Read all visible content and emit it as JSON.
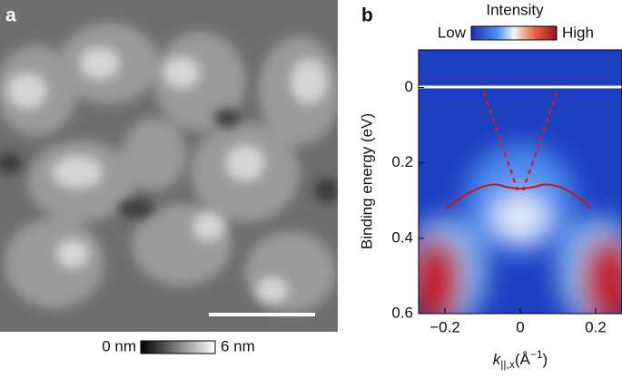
{
  "image_panel": {
    "label": "a",
    "colorbar_min_label": "0 nm",
    "colorbar_max_label": "6 nm"
  },
  "chart_data": {
    "type": "heatmap",
    "label": "b",
    "colorbar_title": "Intensity",
    "colorbar_low_label": "Low",
    "colorbar_high_label": "High",
    "ylabel": "Binding energy (eV)",
    "xlabel_parts": [
      "k",
      "||,x",
      "(Å",
      "−1",
      ")"
    ],
    "xlim": [
      -0.27,
      0.27
    ],
    "ylim": [
      -0.1,
      0.6
    ],
    "y_inverted": true,
    "xticks": [
      {
        "value": -0.2,
        "label": "−0.2"
      },
      0,
      0.2
    ],
    "yticks": [
      0,
      0.2,
      0.4,
      0.6
    ]
  }
}
